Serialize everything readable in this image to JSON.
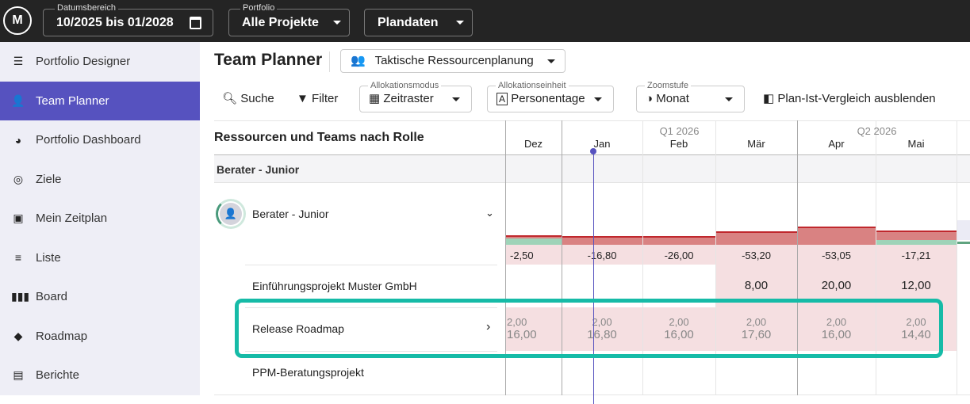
{
  "topbar": {
    "logo": "M",
    "date_range": {
      "label": "Datumsbereich",
      "value": "10/2025 bis 01/2028"
    },
    "portfolio": {
      "label": "Portfolio",
      "value": "Alle Projekte"
    },
    "data_source": {
      "value": "Plandaten"
    }
  },
  "sidebar": {
    "items": [
      {
        "label": "Portfolio Designer",
        "icon": "portfolio-designer-icon",
        "active": false
      },
      {
        "label": "Team Planner",
        "icon": "team-planner-icon",
        "active": true
      },
      {
        "label": "Portfolio Dashboard",
        "icon": "dashboard-icon",
        "active": false
      },
      {
        "label": "Ziele",
        "icon": "target-icon",
        "active": false
      },
      {
        "label": "Mein Zeitplan",
        "icon": "badge-icon",
        "active": false
      },
      {
        "label": "Liste",
        "icon": "list-icon",
        "active": false
      },
      {
        "label": "Board",
        "icon": "board-icon",
        "active": false
      },
      {
        "label": "Roadmap",
        "icon": "roadmap-icon",
        "active": false
      },
      {
        "label": "Berichte",
        "icon": "report-icon",
        "active": false
      }
    ]
  },
  "header": {
    "title": "Team Planner",
    "view": "Taktische Ressourcenplanung"
  },
  "toolbar": {
    "search": "Suche",
    "filter": "Filter",
    "alloc_mode": {
      "label": "Allokationsmodus",
      "value": "Zeitraster"
    },
    "alloc_unit": {
      "label": "Allokationseinheit",
      "value": "Personentage"
    },
    "zoom": {
      "label": "Zoomstufe",
      "value": "Monat"
    },
    "compare": "Plan-Ist-Vergleich ausblenden"
  },
  "grid": {
    "heading": "Ressourcen und Teams nach Rolle",
    "quarters": [
      "Q1 2026",
      "Q2 2026"
    ],
    "months": [
      "Dez",
      "Jan",
      "Feb",
      "Mär",
      "Apr",
      "Mai"
    ],
    "group": "Berater - Junior",
    "resource": {
      "name": "Berater - Junior",
      "balance": [
        "-2,50",
        "-16,80",
        "-26,00",
        "-53,20",
        "-53,05",
        "-17,21"
      ]
    },
    "projects": [
      {
        "name": "Einführungsprojekt Muster GmbH",
        "values": [
          "",
          "",
          "",
          "8,00",
          "20,00",
          "12,00"
        ]
      },
      {
        "name": "Release Roadmap",
        "values": [
          [
            "2,00",
            "16,00"
          ],
          [
            "2,00",
            "16,80"
          ],
          [
            "2,00",
            "16,00"
          ],
          [
            "2,00",
            "17,60"
          ],
          [
            "2,00",
            "16,00"
          ],
          [
            "2,00",
            "14,40"
          ]
        ]
      },
      {
        "name": "PPM-Beratungsprojekt",
        "values": [
          "",
          "",
          "",
          "",
          "",
          ""
        ]
      }
    ]
  },
  "colors": {
    "accent": "#5652bf",
    "over": "#d98282",
    "over_line": "#c0282d",
    "under": "#9ed3b8",
    "pink": "#f5dfe1",
    "highlight": "#16bba7"
  }
}
